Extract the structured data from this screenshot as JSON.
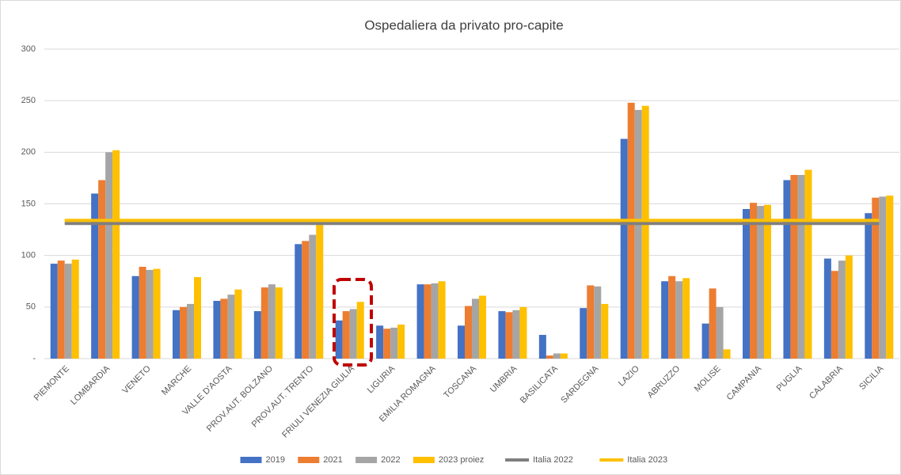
{
  "chart_data": {
    "type": "bar",
    "title": "Ospedaliera da privato pro-capite",
    "categories": [
      "PIEMONTE",
      "LOMBARDIA",
      "VENETO",
      "MARCHE",
      "VALLE D'AOSTA",
      "PROV.AUT. BOLZANO",
      "PROV.AUT. TRENTO",
      "FRIULI VENEZIA GIULIA",
      "LIGURIA",
      "EMILIA ROMAGNA",
      "TOSCANA",
      "UMBRIA",
      "BASILICATA",
      "SARDEGNA",
      "LAZIO",
      "ABRUZZO",
      "MOLISE",
      "CAMPANIA",
      "PUGLIA",
      "CALABRIA",
      "SICILIA"
    ],
    "series": [
      {
        "name": "2019",
        "color": "#4472c4",
        "values": [
          92,
          160,
          80,
          47,
          56,
          46,
          111,
          37,
          32,
          72,
          32,
          46,
          23,
          49,
          213,
          75,
          34,
          145,
          173,
          97,
          141
        ]
      },
      {
        "name": "2021",
        "color": "#ed7d31",
        "values": [
          95,
          173,
          89,
          50,
          58,
          69,
          114,
          46,
          29,
          72,
          51,
          45,
          3,
          71,
          248,
          80,
          68,
          151,
          178,
          85,
          156
        ]
      },
      {
        "name": "2022",
        "color": "#a5a5a5",
        "values": [
          92,
          200,
          86,
          53,
          62,
          72,
          120,
          48,
          30,
          73,
          58,
          47,
          5,
          70,
          241,
          75,
          50,
          148,
          178,
          95,
          157
        ]
      },
      {
        "name": "2023 proiez",
        "color": "#ffc000",
        "values": [
          96,
          202,
          87,
          79,
          67,
          69,
          130,
          55,
          33,
          75,
          61,
          50,
          5,
          53,
          245,
          78,
          9,
          149,
          183,
          100,
          158
        ]
      },
      {
        "name": "Italia 2022",
        "color": "#7f7f7f",
        "type": "line",
        "values": [
          131,
          131,
          131,
          131,
          131,
          131,
          131,
          131,
          131,
          131,
          131,
          131,
          131,
          131,
          131,
          131,
          131,
          131,
          131,
          131,
          131
        ]
      },
      {
        "name": "Italia 2023",
        "color": "#ffc000",
        "type": "line",
        "values": [
          134,
          134,
          134,
          134,
          134,
          134,
          134,
          134,
          134,
          134,
          134,
          134,
          134,
          134,
          134,
          134,
          134,
          134,
          134,
          134,
          134
        ]
      }
    ],
    "ylim": [
      0,
      300
    ],
    "yticks": [
      {
        "value": 0,
        "label": "-"
      },
      50,
      100,
      150,
      200,
      250,
      300
    ],
    "grid": true,
    "legend": "bottom"
  }
}
